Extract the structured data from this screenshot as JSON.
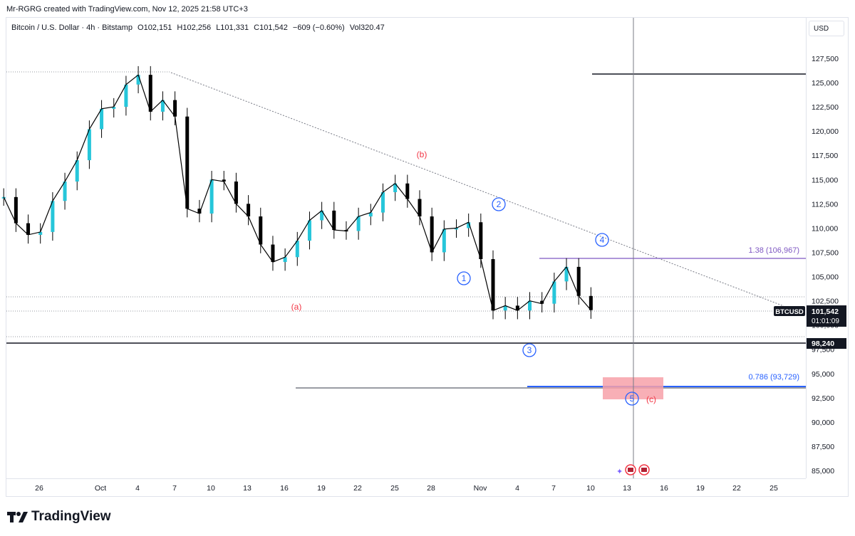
{
  "header": {
    "credit": "Mr-RGRG created with TradingView.com, Nov 12, 2025 21:58 UTC+3"
  },
  "legend": {
    "symbol": "Bitcoin / U.S. Dollar · 4h · Bitstamp",
    "open": "O102,151",
    "high": "H102,256",
    "low": "L101,331",
    "close": "C101,542",
    "change": "−609 (−0.60%)",
    "volume": "Vol320.47"
  },
  "price_axis": {
    "currency": "USD",
    "ticker": "BTCUSD",
    "last_price": "101,542",
    "countdown": "01:01:09",
    "level_label": "98,240"
  },
  "footer": {
    "brand": "TradingView"
  },
  "colors": {
    "candle": "#000000",
    "up_wick": "#26c6da",
    "wave_blue": "#2962ff",
    "abc_red": "#f23645",
    "fib_purple": "#7e57c2",
    "target_zone": "#f7a1a9"
  },
  "icons": [
    "rocket-icon",
    "us-flag-icon",
    "us-flag-icon"
  ],
  "chart_data": {
    "type": "line",
    "title": "Bitcoin / U.S. Dollar · 4h · Bitstamp",
    "ylim": [
      84000,
      130500
    ],
    "yticks": [
      85000,
      87500,
      90000,
      92500,
      95000,
      97500,
      100000,
      102500,
      105000,
      107500,
      110000,
      112500,
      115000,
      117500,
      120000,
      122500,
      125000,
      127500
    ],
    "xticks": [
      "26",
      "Oct",
      "4",
      "7",
      "10",
      "13",
      "16",
      "19",
      "22",
      "25",
      "28",
      "Nov",
      "4",
      "7",
      "10",
      "13",
      "16",
      "19",
      "22",
      "25"
    ],
    "grid": false,
    "series": [
      {
        "x": [
          "Sep 25",
          "Sep 26",
          "Sep 27",
          "Sep 28",
          "Sep 29",
          "Sep 30",
          "Oct 1",
          "Oct 2",
          "Oct 3",
          "Oct 4",
          "Oct 5",
          "Oct 6",
          "Oct 7",
          "Oct 8",
          "Oct 9",
          "Oct 10",
          "Oct 11",
          "Oct 12",
          "Oct 13",
          "Oct 14",
          "Oct 15",
          "Oct 16",
          "Oct 17",
          "Oct 18",
          "Oct 19",
          "Oct 20",
          "Oct 21",
          "Oct 22",
          "Oct 23",
          "Oct 24",
          "Oct 25",
          "Oct 26",
          "Oct 27",
          "Oct 28",
          "Oct 29",
          "Oct 30",
          "Oct 31",
          "Nov 1",
          "Nov 2",
          "Nov 3",
          "Nov 4",
          "Nov 5",
          "Nov 6",
          "Nov 7",
          "Nov 8",
          "Nov 9",
          "Nov 10",
          "Nov 11",
          "Nov 12"
        ],
        "values": [
          113200,
          110500,
          109300,
          109600,
          112800,
          114800,
          117000,
          120200,
          122300,
          122500,
          124800,
          125800,
          122000,
          123200,
          121500,
          112000,
          111500,
          115000,
          114800,
          112500,
          111200,
          108300,
          106500,
          107000,
          108700,
          110800,
          111800,
          109800,
          109700,
          111200,
          111600,
          113700,
          114600,
          113000,
          111200,
          107500,
          109900,
          110000,
          110600,
          106800,
          101500,
          102000,
          101500,
          102500,
          102200,
          104500,
          106000,
          103000,
          101542
        ]
      }
    ],
    "annotations": [
      {
        "label": "(a)",
        "x": "Oct 17",
        "y": 102300
      },
      {
        "label": "(b)",
        "x": "Oct 27",
        "y": 117000
      },
      {
        "label": "(c)",
        "x": "Nov 14",
        "y": 92300
      },
      {
        "label": "1",
        "x": "Oct 30",
        "y": 105000
      },
      {
        "label": "2",
        "x": "Nov 2",
        "y": 112200
      },
      {
        "label": "3",
        "x": "Nov 4",
        "y": 97000
      },
      {
        "label": "4",
        "x": "Nov 10",
        "y": 108800
      },
      {
        "label": "5",
        "x": "Nov 13",
        "y": 92400
      }
    ],
    "levels": [
      {
        "label": "1.38 (106,967)",
        "y": 106967
      },
      {
        "label": "0.786 (93,729)",
        "y": 93729
      },
      {
        "label": "98,240",
        "y": 98240
      }
    ]
  }
}
